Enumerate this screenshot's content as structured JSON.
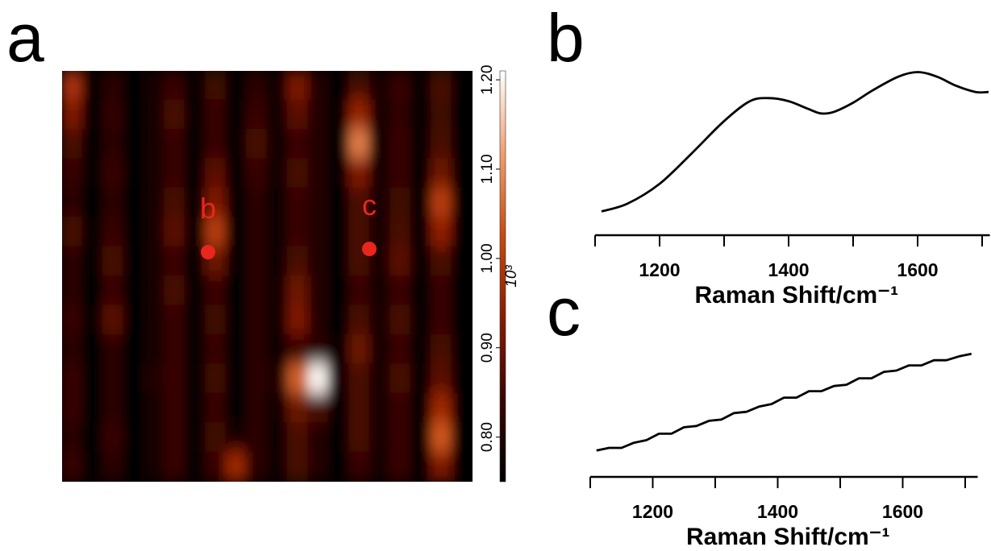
{
  "chart_data": [
    {
      "type": "heatmap",
      "panel": "a",
      "z": [
        [
          0.98,
          0.76,
          0.82,
          0.76,
          0.78,
          0.84,
          0.76,
          0.85,
          0.76,
          0.82,
          0.77,
          0.92,
          0.8,
          0.76,
          0.86,
          0.78,
          0.84,
          0.76,
          0.86,
          0.76
        ],
        [
          0.92,
          0.76,
          0.83,
          0.76,
          0.78,
          0.86,
          0.76,
          0.84,
          0.76,
          0.84,
          0.77,
          0.88,
          0.8,
          0.76,
          0.95,
          0.78,
          0.83,
          0.76,
          0.85,
          0.76
        ],
        [
          0.86,
          0.76,
          0.82,
          0.76,
          0.78,
          0.84,
          0.76,
          0.84,
          0.76,
          0.86,
          0.77,
          0.84,
          0.8,
          0.76,
          1.08,
          0.78,
          0.84,
          0.76,
          0.86,
          0.76
        ],
        [
          0.84,
          0.76,
          0.84,
          0.76,
          0.78,
          0.84,
          0.76,
          0.88,
          0.76,
          0.84,
          0.77,
          0.86,
          0.8,
          0.76,
          0.92,
          0.78,
          0.84,
          0.76,
          0.9,
          0.76
        ],
        [
          0.82,
          0.76,
          0.82,
          0.76,
          0.78,
          0.86,
          0.76,
          0.92,
          0.76,
          0.82,
          0.77,
          0.84,
          0.8,
          0.76,
          0.86,
          0.78,
          0.85,
          0.76,
          1.0,
          0.76
        ],
        [
          0.86,
          0.76,
          0.84,
          0.76,
          0.78,
          0.88,
          0.76,
          1.0,
          0.76,
          0.82,
          0.77,
          0.84,
          0.8,
          0.76,
          0.86,
          0.78,
          0.86,
          0.76,
          0.94,
          0.76
        ],
        [
          0.82,
          0.76,
          0.86,
          0.76,
          0.78,
          0.84,
          0.76,
          0.9,
          0.76,
          0.82,
          0.77,
          0.86,
          0.8,
          0.76,
          0.86,
          0.78,
          0.88,
          0.76,
          0.86,
          0.76
        ],
        [
          0.82,
          0.76,
          0.84,
          0.76,
          0.78,
          0.86,
          0.76,
          0.84,
          0.76,
          0.82,
          0.77,
          0.9,
          0.8,
          0.76,
          0.84,
          0.78,
          0.84,
          0.76,
          0.84,
          0.76
        ],
        [
          0.84,
          0.76,
          0.88,
          0.76,
          0.78,
          0.84,
          0.76,
          0.85,
          0.76,
          0.82,
          0.77,
          0.92,
          0.8,
          0.76,
          0.86,
          0.78,
          0.86,
          0.76,
          0.84,
          0.76
        ],
        [
          0.82,
          0.76,
          0.82,
          0.76,
          0.78,
          0.84,
          0.76,
          0.84,
          0.76,
          0.82,
          0.77,
          0.84,
          0.82,
          0.76,
          0.9,
          0.78,
          0.84,
          0.76,
          0.86,
          0.76
        ],
        [
          0.84,
          0.76,
          0.82,
          0.76,
          0.8,
          0.84,
          0.76,
          0.85,
          0.76,
          0.82,
          0.8,
          1.05,
          1.2,
          0.78,
          0.86,
          0.78,
          0.86,
          0.76,
          0.88,
          0.76
        ],
        [
          0.84,
          0.76,
          0.82,
          0.76,
          0.78,
          0.84,
          0.76,
          0.84,
          0.76,
          0.82,
          0.77,
          0.9,
          0.86,
          0.76,
          0.86,
          0.78,
          0.84,
          0.76,
          0.96,
          0.76
        ],
        [
          0.82,
          0.76,
          0.84,
          0.76,
          0.78,
          0.84,
          0.76,
          0.85,
          0.78,
          0.82,
          0.77,
          0.86,
          0.8,
          0.76,
          0.86,
          0.78,
          0.84,
          0.76,
          1.04,
          0.76
        ],
        [
          0.84,
          0.76,
          0.82,
          0.76,
          0.78,
          0.84,
          0.76,
          0.84,
          0.96,
          0.82,
          0.77,
          0.86,
          0.8,
          0.76,
          0.84,
          0.78,
          0.84,
          0.76,
          0.92,
          0.76
        ]
      ],
      "zlim": [
        0.75,
        1.21
      ],
      "zticks": [
        {
          "value": 0.8,
          "label": "0.80"
        },
        {
          "value": 0.9,
          "label": "0.90"
        },
        {
          "value": 1.0,
          "label": "1.00"
        },
        {
          "value": 1.1,
          "label": "1.10"
        },
        {
          "value": 1.2,
          "label": "1.20"
        }
      ],
      "zunit": "10³",
      "colormap": [
        "#000000",
        "#3a0500",
        "#8a1a00",
        "#c84a10",
        "#f0a070",
        "#ffffff"
      ],
      "annotations": [
        {
          "text": "b",
          "color": "#e8261e"
        },
        {
          "text": "c",
          "color": "#e8261e"
        }
      ]
    },
    {
      "type": "line",
      "panel": "b",
      "color": "#000000",
      "x": [
        1110,
        1150,
        1200,
        1250,
        1300,
        1340,
        1370,
        1400,
        1430,
        1450,
        1470,
        1500,
        1530,
        1570,
        1600,
        1630,
        1660,
        1690,
        1710
      ],
      "values": [
        0.04,
        0.09,
        0.22,
        0.42,
        0.63,
        0.76,
        0.78,
        0.76,
        0.71,
        0.68,
        0.69,
        0.75,
        0.83,
        0.92,
        0.95,
        0.92,
        0.86,
        0.82,
        0.82
      ],
      "xlim": [
        1100,
        1712
      ],
      "ylim": [
        0,
        1
      ],
      "xticks": [
        1200,
        1400,
        1600
      ],
      "minor_xticks": [
        1100,
        1300,
        1500,
        1700
      ],
      "xlabel": "Raman Shift/cm⁻¹"
    },
    {
      "type": "line",
      "panel": "c",
      "color": "#000000",
      "x": [
        1110,
        1130,
        1150,
        1170,
        1190,
        1210,
        1230,
        1250,
        1270,
        1290,
        1310,
        1330,
        1350,
        1370,
        1390,
        1410,
        1430,
        1450,
        1470,
        1490,
        1510,
        1530,
        1550,
        1570,
        1590,
        1610,
        1630,
        1650,
        1670,
        1690,
        1710
      ],
      "values": [
        0.13,
        0.15,
        0.15,
        0.19,
        0.21,
        0.26,
        0.26,
        0.31,
        0.32,
        0.36,
        0.37,
        0.42,
        0.43,
        0.47,
        0.49,
        0.54,
        0.54,
        0.59,
        0.59,
        0.63,
        0.64,
        0.69,
        0.69,
        0.74,
        0.75,
        0.79,
        0.79,
        0.83,
        0.83,
        0.86,
        0.88
      ],
      "xlim": [
        1100,
        1720
      ],
      "ylim": [
        0,
        1
      ],
      "xticks": [
        1200,
        1400,
        1600
      ],
      "minor_xticks": [
        1100,
        1300,
        1500,
        1700
      ],
      "xlabel": "Raman Shift/cm⁻¹"
    }
  ]
}
